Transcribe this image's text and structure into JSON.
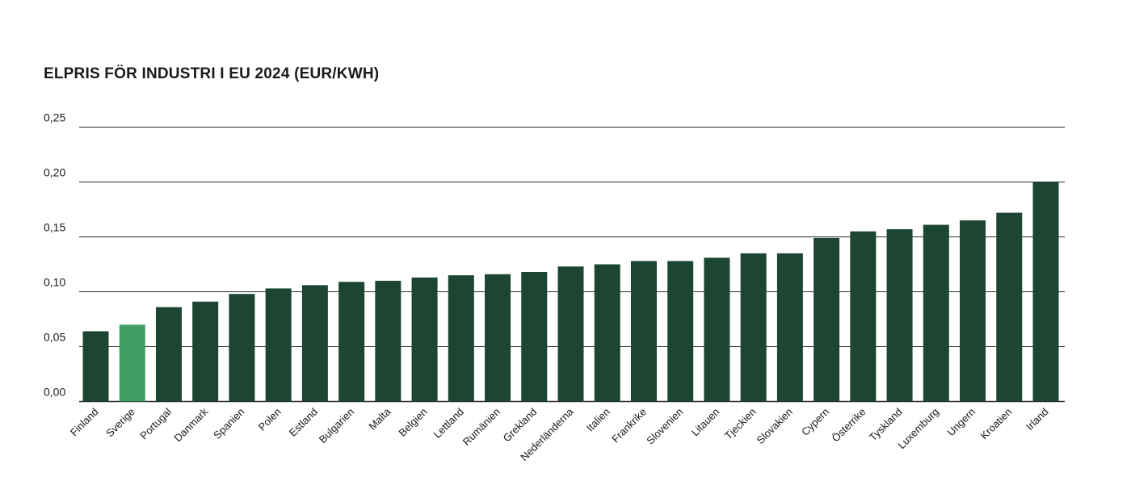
{
  "chart_data": {
    "type": "bar",
    "title": "ELPRIS FÖR INDUSTRI I EU 2024 (EUR/KWH)",
    "xlabel": "",
    "ylabel": "",
    "ylim": [
      0,
      0.25
    ],
    "y_ticks": [
      "0,00",
      "0,05",
      "0,10",
      "0,15",
      "0,20",
      "0,25"
    ],
    "y_tick_values": [
      0,
      0.05,
      0.1,
      0.15,
      0.2,
      0.25
    ],
    "grid": true,
    "colors": {
      "default": "#1c4532",
      "highlight": "#3f9c63"
    },
    "highlight": "Sverige",
    "categories": [
      "Finland",
      "Sverige",
      "Portugal",
      "Danmark",
      "Spanien",
      "Polen",
      "Estland",
      "Bulgarien",
      "Malta",
      "Belgien",
      "Lettland",
      "Rumänien",
      "Grekland",
      "Nederländerna",
      "Italien",
      "Frankrike",
      "Slovenien",
      "Litauen",
      "Tjeckien",
      "Slovakien",
      "Cypern",
      "Österrike",
      "Tyskland",
      "Luxemburg",
      "Ungern",
      "Kroatien",
      "Irland"
    ],
    "values": [
      0.064,
      0.07,
      0.086,
      0.091,
      0.098,
      0.103,
      0.106,
      0.109,
      0.11,
      0.113,
      0.115,
      0.116,
      0.118,
      0.123,
      0.125,
      0.128,
      0.128,
      0.131,
      0.135,
      0.135,
      0.149,
      0.155,
      0.157,
      0.161,
      0.165,
      0.172,
      0.2
    ]
  }
}
